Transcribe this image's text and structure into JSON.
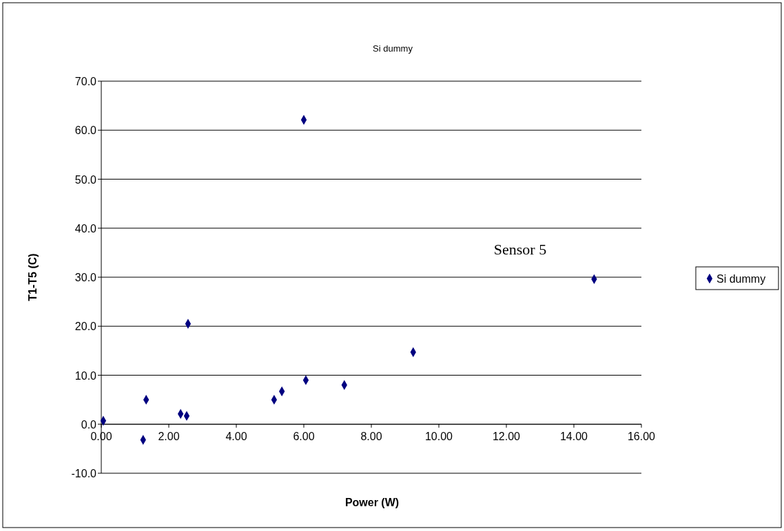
{
  "chart_data": {
    "type": "scatter",
    "title": "Si dummy",
    "xlabel": "Power (W)",
    "ylabel": "T1-T5 (C)",
    "x": [
      0.06,
      1.24,
      1.33,
      2.35,
      2.53,
      2.57,
      5.12,
      5.35,
      6.0,
      6.06,
      7.2,
      9.24,
      14.6
    ],
    "series": [
      {
        "name": "Si dummy",
        "color": "#000080",
        "values": [
          0.7,
          -3.2,
          5.0,
          2.1,
          1.7,
          20.5,
          5.0,
          6.7,
          62.1,
          9.0,
          8.0,
          14.7,
          29.6
        ]
      }
    ],
    "xlim": [
      0,
      16
    ],
    "ylim": [
      -10,
      70
    ],
    "xticks": [
      {
        "value": 0,
        "label": "0.00"
      },
      {
        "value": 2,
        "label": "2.00"
      },
      {
        "value": 4,
        "label": "4.00"
      },
      {
        "value": 6,
        "label": "6.00"
      },
      {
        "value": 8,
        "label": "8.00"
      },
      {
        "value": 10,
        "label": "10.00"
      },
      {
        "value": 12,
        "label": "12.00"
      },
      {
        "value": 14,
        "label": "14.00"
      },
      {
        "value": 16,
        "label": "16.00"
      }
    ],
    "yticks": [
      {
        "value": -10,
        "label": "-10.0"
      },
      {
        "value": 0,
        "label": "0.0"
      },
      {
        "value": 10,
        "label": "10.0"
      },
      {
        "value": 20,
        "label": "20.0"
      },
      {
        "value": 30,
        "label": "30.0"
      },
      {
        "value": 40,
        "label": "40.0"
      },
      {
        "value": 50,
        "label": "50.0"
      },
      {
        "value": 60,
        "label": "60.0"
      },
      {
        "value": 70,
        "label": "70.0"
      }
    ],
    "grid": "y",
    "legend": "right",
    "marker": "diamond",
    "annotations": [
      "Sensor 5"
    ]
  }
}
